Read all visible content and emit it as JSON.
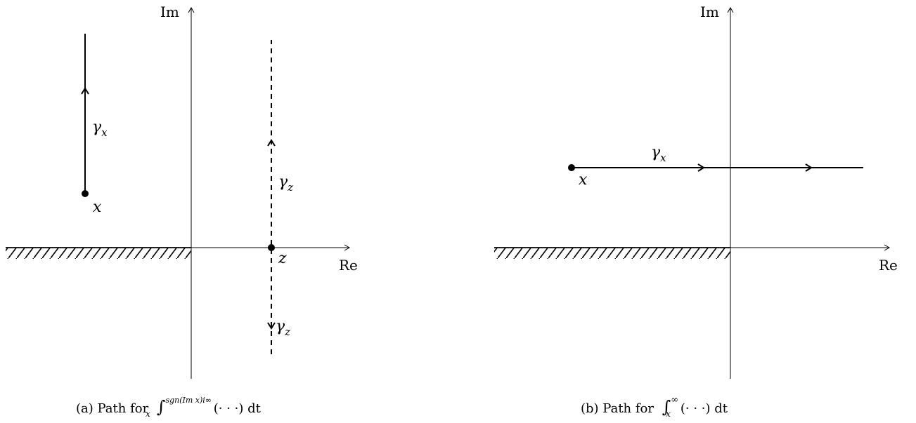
{
  "panel_a": {
    "axis_im": "Im",
    "axis_re": "Re",
    "point_x": "x",
    "point_z": "z",
    "gamma_x": {
      "main": "γ",
      "sub": "x"
    },
    "gamma_z_upper": {
      "main": "γ",
      "sub": "z"
    },
    "gamma_z_lower": {
      "main": "γ",
      "sub": "z"
    },
    "caption_prefix": "(a) Path for",
    "caption_upper": "sgn(Im x)i∞",
    "caption_lower": "x",
    "caption_integrand": "(· · ·) dt"
  },
  "panel_b": {
    "axis_im": "Im",
    "axis_re": "Re",
    "point_x": "x",
    "gamma_x": {
      "main": "γ",
      "sub": "x"
    },
    "caption_prefix": "(b) Path for",
    "caption_upper": "∞",
    "caption_lower": "x",
    "caption_integrand": "(· · ·) dt"
  }
}
